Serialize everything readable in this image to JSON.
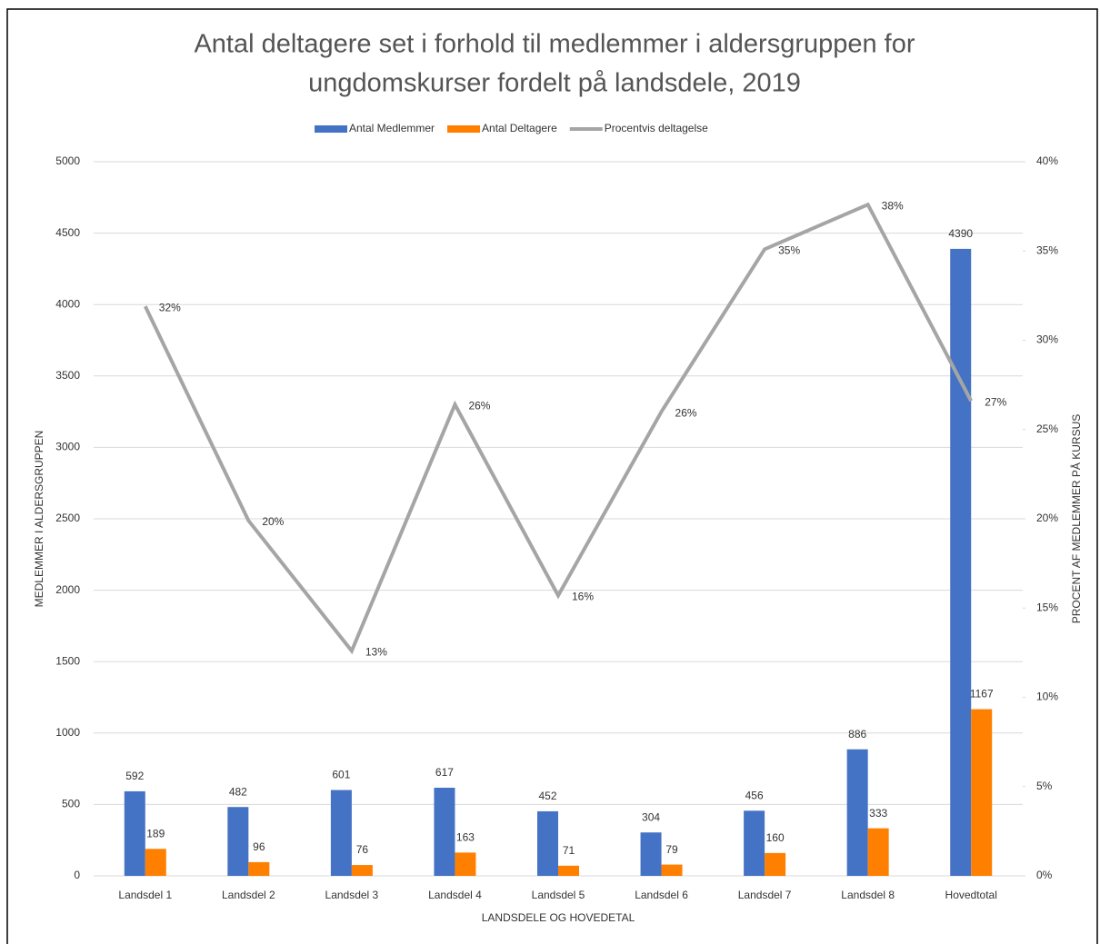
{
  "chart_data": {
    "type": "bar_line",
    "title": [
      "Antal deltagere set i forhold til medlemmer i aldersgruppen for",
      "ungdomskurser fordelt på landsdele, 2019"
    ],
    "x_label": "LANDSDELE OG HOVEDETAL",
    "y_label": "MEDLEMMER I ALDERSGRUPPEN",
    "y2_label": "PROCENT AF MEDLEMMER  PÅ KURSUS",
    "categories": [
      "Landsdel 1",
      "Landsdel 2",
      "Landsdel 3",
      "Landsdel 4",
      "Landsdel 5",
      "Landsdel 6",
      "Landsdel 7",
      "Landsdel 8",
      "Hovedtotal"
    ],
    "series": [
      {
        "name": "Antal Medlemmer",
        "color": "#4472c4",
        "values": [
          592,
          482,
          601,
          617,
          452,
          304,
          456,
          886,
          4390
        ]
      },
      {
        "name": "Antal Deltagere",
        "color": "#ff7f00",
        "values": [
          189,
          96,
          76,
          163,
          71,
          79,
          160,
          333,
          1167
        ]
      },
      {
        "name": "Procentvis deltagelse",
        "color": "#a5a5a5",
        "axis": "y2",
        "values": [
          31.9,
          19.9,
          12.6,
          26.4,
          15.7,
          26.0,
          35.1,
          37.6,
          26.6
        ],
        "value_labels": [
          "32%",
          "20%",
          "13%",
          "26%",
          "16%",
          "26%",
          "35%",
          "38%",
          "27%"
        ]
      }
    ],
    "ylim": [
      0,
      5000
    ],
    "yticks": [
      0,
      500,
      1000,
      1500,
      2000,
      2500,
      3000,
      3500,
      4000,
      4500,
      5000
    ],
    "y2lim": [
      0,
      40
    ],
    "y2ticks": [
      {
        "value": 0,
        "label": "0%"
      },
      {
        "value": 5,
        "label": "5%"
      },
      {
        "value": 10,
        "label": "10%"
      },
      {
        "value": 15,
        "label": "15%"
      },
      {
        "value": 20,
        "label": "20%"
      },
      {
        "value": 25,
        "label": "25%"
      },
      {
        "value": 30,
        "label": "30%"
      },
      {
        "value": 35,
        "label": "35%"
      },
      {
        "value": 40,
        "label": "40%"
      }
    ],
    "grid": true,
    "legend": "top"
  }
}
